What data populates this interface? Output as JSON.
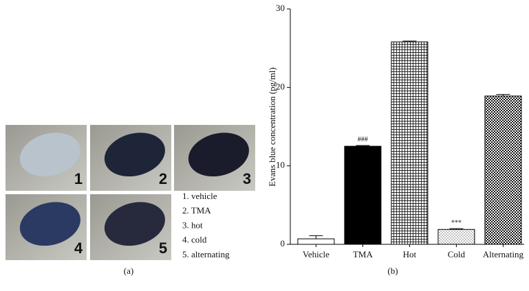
{
  "panel_a": {
    "photos": [
      {
        "label": "1"
      },
      {
        "label": "2"
      },
      {
        "label": "3"
      },
      {
        "label": "4"
      },
      {
        "label": "5"
      }
    ],
    "legend": [
      "1. vehicle",
      "2. TMA",
      "3. hot",
      "4. cold",
      "5. alternating"
    ],
    "caption": "(a)"
  },
  "chart_data": {
    "type": "bar",
    "caption": "(b)",
    "y_label": "Evans blue concentration (pg/ml)",
    "categories": [
      "Vehicle",
      "TMA",
      "Hot",
      "Cold",
      "Alternating"
    ],
    "values": [
      0.7,
      12.5,
      25.8,
      1.9,
      18.9
    ],
    "errors": [
      0.4,
      0.1,
      0.1,
      0.1,
      0.2
    ],
    "patterns": [
      "white",
      "solid",
      "grid",
      "dots",
      "checker"
    ],
    "annotations": [
      {
        "category": "TMA",
        "text": "###"
      },
      {
        "category": "Cold",
        "text": "***"
      }
    ],
    "ylim": [
      0,
      30
    ],
    "yticks": [
      0,
      10,
      20,
      30
    ]
  }
}
